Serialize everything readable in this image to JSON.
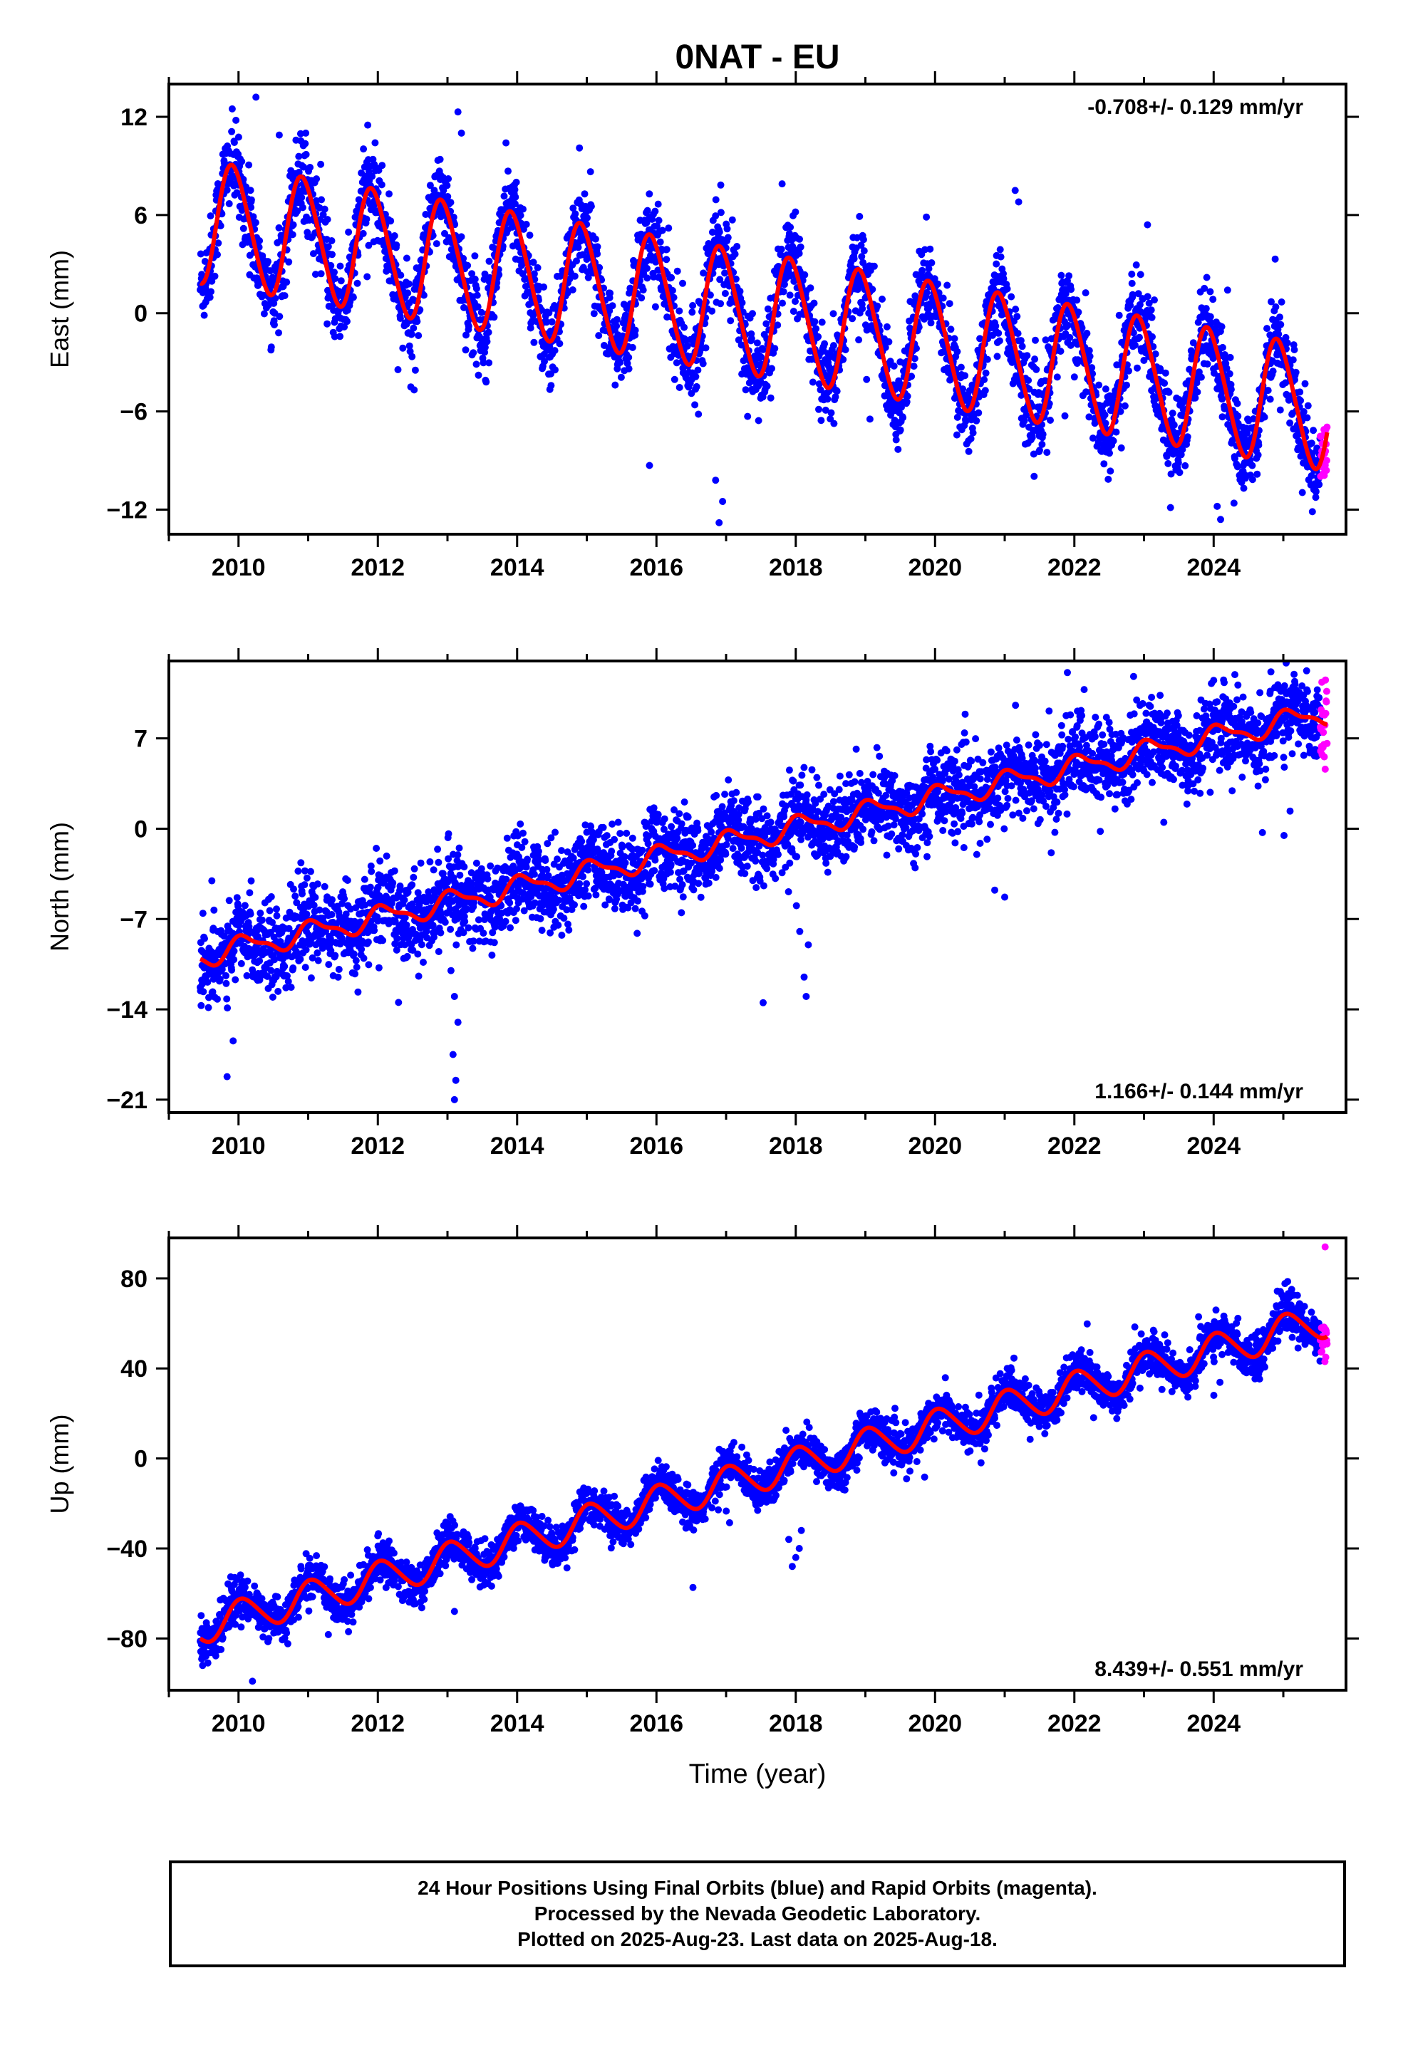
{
  "title": "0NAT - EU",
  "x_axis_label": "Time (year)",
  "caption": [
    "24 Hour Positions Using Final Orbits (blue) and Rapid Orbits (magenta).",
    "Processed by the Nevada Geodetic Laboratory.",
    "Plotted on 2025-Aug-23. Last data on 2025-Aug-18."
  ],
  "colors": {
    "final": "#0000ff",
    "rapid": "#ff00ff",
    "model": "#ff0000",
    "frame": "#000000"
  },
  "chart_data": [
    {
      "type": "scatter",
      "name": "east",
      "ylabel": "East (mm)",
      "rate_label": "-0.708+/- 0.129 mm/yr",
      "rate_position": "top-right",
      "xlim": [
        2009.0,
        2025.9
      ],
      "ylim": [
        -13.5,
        14
      ],
      "yticks": [
        12,
        6,
        0,
        -6,
        -12
      ],
      "xticks": [
        2010,
        2012,
        2014,
        2016,
        2018,
        2020,
        2022,
        2024
      ],
      "data_start": 2009.45,
      "data_end": 2025.63,
      "rapid_start": 2025.53,
      "model": {
        "ref_year": 2017.5,
        "offset": -0.1,
        "rate": -0.708,
        "annual_amp": 3.7,
        "annual_phase": 2.0,
        "semiannual_amp": 0.4
      },
      "scatter_sd": 1.3,
      "outliers": [
        {
          "x": 2010.25,
          "y": 13.2
        },
        {
          "x": 2013.15,
          "y": 12.3
        },
        {
          "x": 2013.2,
          "y": 11.0
        },
        {
          "x": 2016.9,
          "y": -12.8
        },
        {
          "x": 2016.95,
          "y": -11.5
        },
        {
          "x": 2016.85,
          "y": -10.2
        },
        {
          "x": 2021.15,
          "y": 7.5
        },
        {
          "x": 2021.2,
          "y": 6.8
        },
        {
          "x": 2023.05,
          "y": 5.4
        },
        {
          "x": 2024.1,
          "y": -12.6
        },
        {
          "x": 2024.05,
          "y": -11.8
        },
        {
          "x": 2015.9,
          "y": -9.3
        }
      ]
    },
    {
      "type": "scatter",
      "name": "north",
      "ylabel": "North (mm)",
      "rate_label": "1.166+/- 0.144 mm/yr",
      "rate_position": "bottom-right",
      "xlim": [
        2009.0,
        2025.9
      ],
      "ylim": [
        -22,
        13
      ],
      "yticks": [
        7,
        0,
        -7,
        -14,
        -21
      ],
      "xticks": [
        2010,
        2012,
        2014,
        2016,
        2018,
        2020,
        2022,
        2024
      ],
      "data_start": 2009.45,
      "data_end": 2025.63,
      "rapid_start": 2025.53,
      "model": {
        "ref_year": 2017.5,
        "offset": -0.5,
        "rate": 1.166,
        "annual_amp": 0.8,
        "annual_phase": 1.0,
        "semiannual_amp": 0.3
      },
      "scatter_sd": 1.6,
      "outliers": [
        {
          "x": 2013.1,
          "y": -21.0
        },
        {
          "x": 2013.12,
          "y": -19.5
        },
        {
          "x": 2013.08,
          "y": -17.5
        },
        {
          "x": 2013.15,
          "y": -15.0
        },
        {
          "x": 2013.1,
          "y": -13.0
        },
        {
          "x": 2013.05,
          "y": -11.0
        },
        {
          "x": 2018.15,
          "y": -13.0
        },
        {
          "x": 2018.12,
          "y": -11.5
        },
        {
          "x": 2018.18,
          "y": -9.0
        },
        {
          "x": 2021.9,
          "y": 12.1
        },
        {
          "x": 2022.85,
          "y": 11.8
        },
        {
          "x": 2024.0,
          "y": 11.5
        },
        {
          "x": 2024.7,
          "y": -0.3
        },
        {
          "x": 2021.0,
          "y": -5.3
        }
      ]
    },
    {
      "type": "scatter",
      "name": "up",
      "ylabel": "Up (mm)",
      "rate_label": "8.439+/- 0.551 mm/yr",
      "rate_position": "bottom-right",
      "xlim": [
        2009.0,
        2025.9
      ],
      "ylim": [
        -103,
        98
      ],
      "yticks": [
        80,
        40,
        0,
        -40,
        -80
      ],
      "xticks": [
        2010,
        2012,
        2014,
        2016,
        2018,
        2020,
        2022,
        2024
      ],
      "data_start": 2009.45,
      "data_end": 2025.63,
      "rapid_start": 2025.53,
      "model": {
        "ref_year": 2017.5,
        "offset": -7.0,
        "rate": 8.439,
        "annual_amp": 7.5,
        "annual_phase": 1.2,
        "semiannual_amp": 0.8
      },
      "scatter_sd": 4.5,
      "outliers": [
        {
          "x": 2017.95,
          "y": -48
        },
        {
          "x": 2018.0,
          "y": -44
        },
        {
          "x": 2018.05,
          "y": -40
        },
        {
          "x": 2017.9,
          "y": -36
        },
        {
          "x": 2018.08,
          "y": -32
        },
        {
          "x": 2010.2,
          "y": -99
        },
        {
          "x": 2025.6,
          "y": 94
        },
        {
          "x": 2013.1,
          "y": -68
        }
      ]
    }
  ]
}
